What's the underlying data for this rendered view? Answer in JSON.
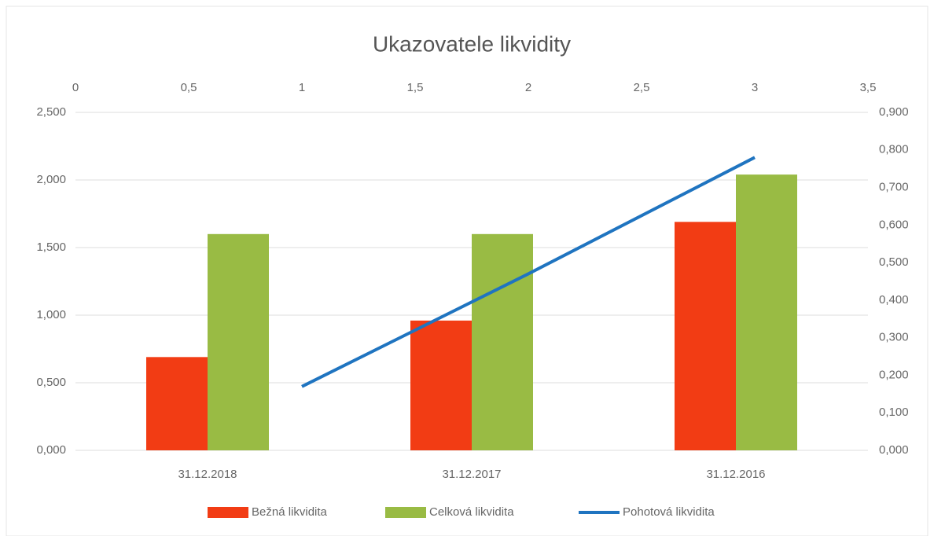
{
  "chart_data": {
    "type": "combo",
    "title": "Ukazovatele likvidity",
    "categories": [
      "31.12.2018",
      "31.12.2017",
      "31.12.2016"
    ],
    "series": [
      {
        "name": "Bežná likvidita",
        "type": "bar",
        "color": "#f23c14",
        "values": [
          0.69,
          0.96,
          1.69
        ]
      },
      {
        "name": "Celková likvidita",
        "type": "bar",
        "color": "#99bb44",
        "values": [
          1.6,
          1.6,
          2.04
        ]
      },
      {
        "name": "Pohotová likvidita",
        "type": "line",
        "color": "#1f74c0",
        "axis": "y2",
        "x": [
          1,
          2,
          3
        ],
        "values": [
          0.17,
          0.47,
          0.78
        ]
      }
    ],
    "ylim": [
      0,
      2.5
    ],
    "yticks": [
      {
        "value": 0,
        "label": "0,000"
      },
      {
        "value": 0.5,
        "label": "0,500"
      },
      {
        "value": 1,
        "label": "1,000"
      },
      {
        "value": 1.5,
        "label": "1,500"
      },
      {
        "value": 2,
        "label": "2,000"
      },
      {
        "value": 2.5,
        "label": "2,500"
      }
    ],
    "y2lim": [
      0,
      0.9
    ],
    "y2ticks": [
      {
        "value": 0,
        "label": "0,000"
      },
      {
        "value": 0.1,
        "label": "0,100"
      },
      {
        "value": 0.2,
        "label": "0,200"
      },
      {
        "value": 0.3,
        "label": "0,300"
      },
      {
        "value": 0.4,
        "label": "0,400"
      },
      {
        "value": 0.5,
        "label": "0,500"
      },
      {
        "value": 0.6,
        "label": "0,600"
      },
      {
        "value": 0.7,
        "label": "0,700"
      },
      {
        "value": 0.8,
        "label": "0,800"
      },
      {
        "value": 0.9,
        "label": "0,900"
      }
    ],
    "x2lim": [
      0,
      3.5
    ],
    "x2ticks": [
      0,
      {
        "value": 0.5,
        "label": "0,5"
      },
      1,
      {
        "value": 1.5,
        "label": "1,5"
      },
      2,
      {
        "value": 2.5,
        "label": "2,5"
      },
      3,
      {
        "value": 3.5,
        "label": "3,5"
      }
    ],
    "grid": true,
    "legend": "bottom"
  }
}
